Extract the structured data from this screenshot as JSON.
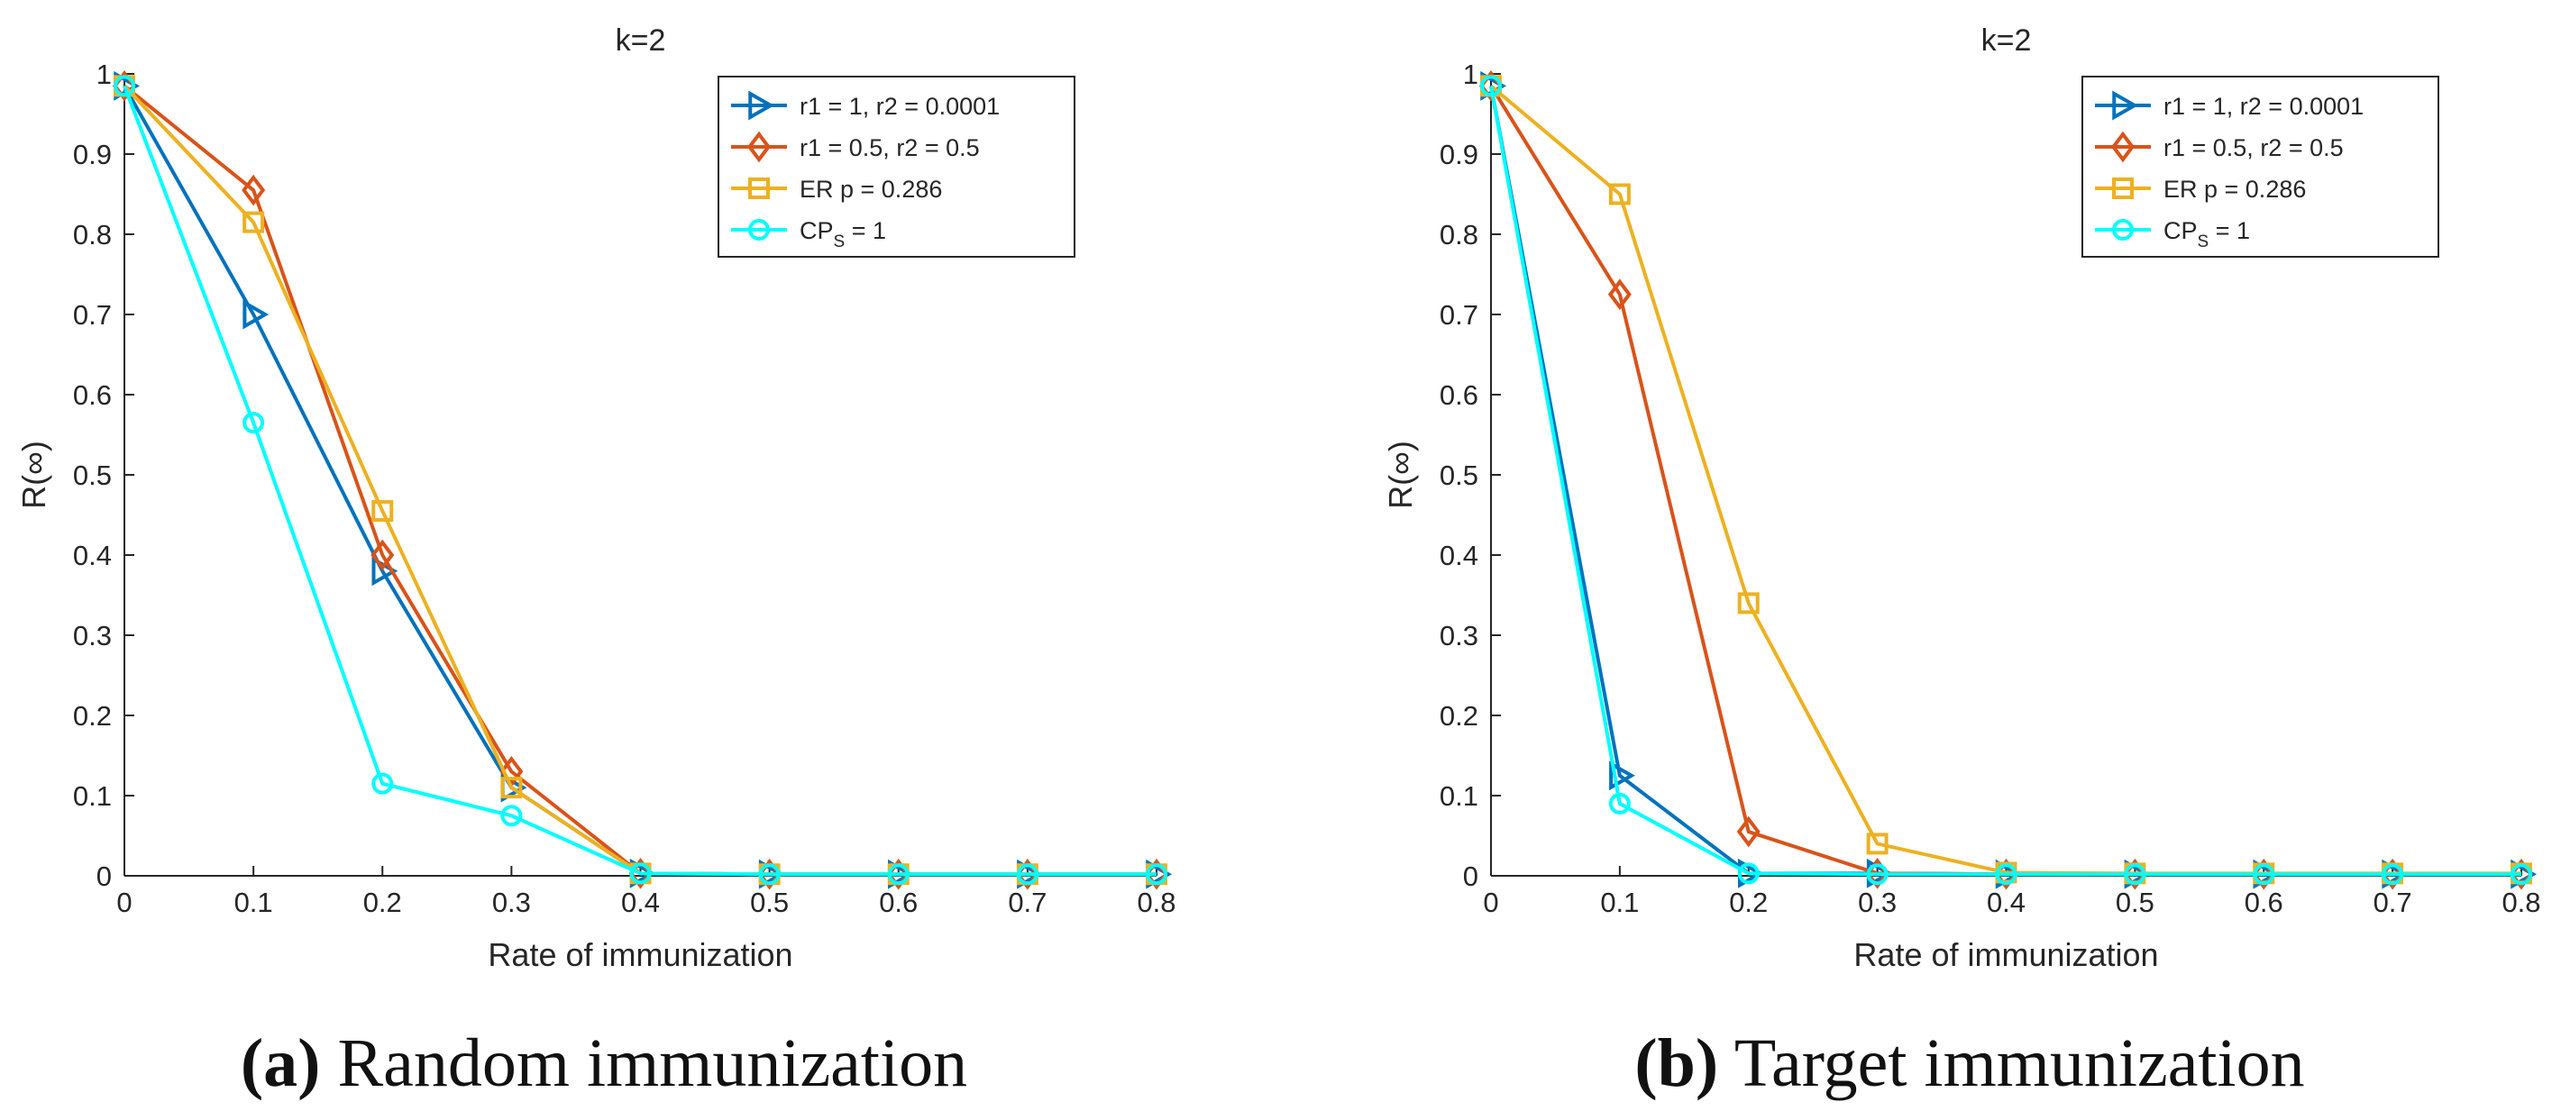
{
  "chart_data": [
    {
      "type": "line",
      "title": "k=2",
      "xlabel": "Rate of immunization",
      "ylabel": "R(∞)",
      "xlim": [
        0,
        0.8
      ],
      "ylim": [
        0,
        1
      ],
      "xticks": [
        "0",
        "0.1",
        "0.2",
        "0.3",
        "0.4",
        "0.5",
        "0.6",
        "0.7",
        "0.8"
      ],
      "yticks": [
        "0",
        "0.1",
        "0.2",
        "0.3",
        "0.4",
        "0.5",
        "0.6",
        "0.7",
        "0.8",
        "0.9",
        "1"
      ],
      "x": [
        0,
        0.1,
        0.2,
        0.3,
        0.4,
        0.5,
        0.6,
        0.7,
        0.8
      ],
      "legend_position": "top-right",
      "series": [
        {
          "name": "r1 = 1, r2 = 0.0001",
          "marker": "triangle-right",
          "color": "#0072BD",
          "values": [
            0.985,
            0.7,
            0.38,
            0.11,
            0.003,
            0.002,
            0.002,
            0.002,
            0.002
          ]
        },
        {
          "name": "r1 = 0.5, r2 = 0.5",
          "marker": "diamond",
          "color": "#D95319",
          "values": [
            0.985,
            0.855,
            0.4,
            0.13,
            0.003,
            0.002,
            0.002,
            0.002,
            0.002
          ]
        },
        {
          "name": "ER p = 0.286",
          "marker": "square",
          "color": "#EDB120",
          "values": [
            0.985,
            0.815,
            0.455,
            0.11,
            0.003,
            0.002,
            0.002,
            0.002,
            0.002
          ]
        },
        {
          "name": "CPS = 1",
          "name_main": "CP",
          "name_sub": "S",
          "name_rest": " = 1",
          "marker": "circle",
          "color": "#00FFFF",
          "values": [
            0.985,
            0.565,
            0.115,
            0.075,
            0.003,
            0.002,
            0.002,
            0.002,
            0.002
          ]
        }
      ],
      "caption_letter": "(a)",
      "caption_text": " Random immunization"
    },
    {
      "type": "line",
      "title": "k=2",
      "xlabel": "Rate of immunization",
      "ylabel": "R(∞)",
      "xlim": [
        0,
        0.8
      ],
      "ylim": [
        0,
        1
      ],
      "xticks": [
        "0",
        "0.1",
        "0.2",
        "0.3",
        "0.4",
        "0.5",
        "0.6",
        "0.7",
        "0.8"
      ],
      "yticks": [
        "0",
        "0.1",
        "0.2",
        "0.3",
        "0.4",
        "0.5",
        "0.6",
        "0.7",
        "0.8",
        "0.9",
        "1"
      ],
      "x": [
        0,
        0.1,
        0.2,
        0.3,
        0.4,
        0.5,
        0.6,
        0.7,
        0.8
      ],
      "legend_position": "top-right",
      "series": [
        {
          "name": "r1 = 1, r2 = 0.0001",
          "marker": "triangle-right",
          "color": "#0072BD",
          "values": [
            0.985,
            0.125,
            0.003,
            0.003,
            0.002,
            0.002,
            0.002,
            0.002,
            0.002
          ]
        },
        {
          "name": "r1 = 0.5, r2 = 0.5",
          "marker": "diamond",
          "color": "#D95319",
          "values": [
            0.985,
            0.725,
            0.055,
            0.003,
            0.002,
            0.002,
            0.002,
            0.002,
            0.002
          ]
        },
        {
          "name": "ER p = 0.286",
          "marker": "square",
          "color": "#EDB120",
          "values": [
            0.985,
            0.85,
            0.34,
            0.04,
            0.004,
            0.003,
            0.003,
            0.003,
            0.003
          ]
        },
        {
          "name": "CPS = 1",
          "name_main": "CP",
          "name_sub": "S",
          "name_rest": " = 1",
          "marker": "circle",
          "color": "#00FFFF",
          "values": [
            0.985,
            0.09,
            0.003,
            0.002,
            0.002,
            0.002,
            0.002,
            0.002,
            0.002
          ]
        }
      ],
      "caption_letter": "(b)",
      "caption_text": " Target immunization"
    }
  ]
}
